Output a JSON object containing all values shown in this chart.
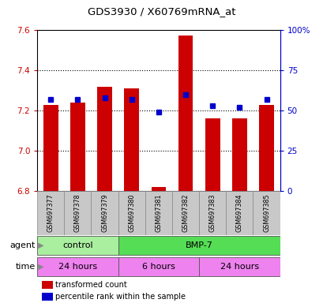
{
  "title": "GDS3930 / X60769mRNA_at",
  "samples": [
    "GSM697377",
    "GSM697378",
    "GSM697379",
    "GSM697380",
    "GSM697381",
    "GSM697382",
    "GSM697383",
    "GSM697384",
    "GSM697385"
  ],
  "red_values": [
    7.23,
    7.24,
    7.32,
    7.31,
    6.82,
    7.575,
    7.16,
    7.16,
    7.23
  ],
  "blue_values": [
    57,
    57,
    58,
    57,
    49,
    60,
    53,
    52,
    57
  ],
  "ylim_left": [
    6.8,
    7.6
  ],
  "ylim_right": [
    0,
    100
  ],
  "yticks_left": [
    6.8,
    7.0,
    7.2,
    7.4,
    7.6
  ],
  "yticks_right": [
    0,
    25,
    50,
    75,
    100
  ],
  "ytick_labels_right": [
    "0",
    "25",
    "50",
    "75",
    "100%"
  ],
  "agent_labels": [
    {
      "text": "control",
      "start": 0,
      "end": 3,
      "color": "#AAEEA0"
    },
    {
      "text": "BMP-7",
      "start": 3,
      "end": 9,
      "color": "#55DD55"
    }
  ],
  "time_labels": [
    {
      "text": "24 hours",
      "start": 0,
      "end": 3,
      "color": "#EE82EE"
    },
    {
      "text": "6 hours",
      "start": 3,
      "end": 6,
      "color": "#EE82EE"
    },
    {
      "text": "24 hours",
      "start": 6,
      "end": 9,
      "color": "#EE82EE"
    }
  ],
  "bar_width": 0.55,
  "bar_bottom": 6.8,
  "red_color": "#CC0000",
  "blue_color": "#0000CC",
  "sample_bg_color": "#C8C8C8",
  "legend_red": "transformed count",
  "legend_blue": "percentile rank within the sample"
}
